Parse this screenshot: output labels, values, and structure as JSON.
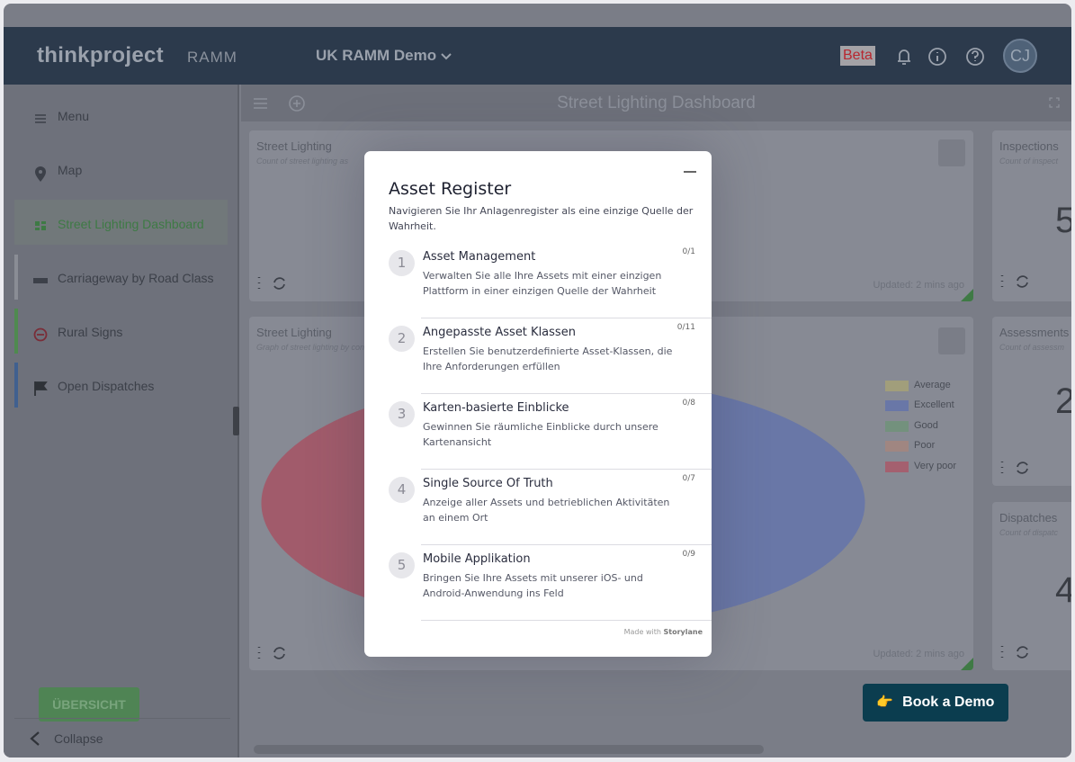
{
  "browser": {},
  "header": {
    "logo": "thinkproject",
    "product": "RAMM",
    "project": "UK RAMM Demo",
    "badge": "Beta",
    "avatar": "CJ"
  },
  "sidebar": {
    "items": [
      "Menu",
      "Map",
      "Street Lighting Dashboard",
      "Carriageway by Road Class",
      "Rural Signs",
      "Open Dispatches"
    ],
    "button": "ÜBERSICHT",
    "collapse": "Collapse"
  },
  "dashboard": {
    "title": "Street Lighting Dashboard",
    "cards": [
      {
        "title": "Street Lighting",
        "subtitle": "Count of street lighting as",
        "updated": "Updated: 2 mins ago"
      },
      {
        "title": "Inspections",
        "subtitle": "Count of inspect",
        "value": "5"
      },
      {
        "title": "Street Lighting",
        "subtitle": "Graph of street lighting by condition",
        "updated": "Updated: 2 mins ago"
      },
      {
        "title": "Assessments",
        "subtitle": "Count of assessm",
        "value": "2"
      },
      {
        "title": "Dispatches",
        "subtitle": "Count of dispatc",
        "value": "4"
      }
    ],
    "legend": [
      "Average",
      "Excellent",
      "Good",
      "Poor",
      "Very poor"
    ]
  },
  "cta": "Book a Demo",
  "modal": {
    "title": "Asset Register",
    "subtitle": "Navigieren Sie Ihr Anlagenregister als eine einzige Quelle der Wahrheit.",
    "steps": [
      {
        "number": "1",
        "title": "Asset Management",
        "description": "Verwalten Sie alle Ihre Assets mit einer einzigen Plattform in einer einzigen Quelle der Wahrheit",
        "progress": "0/1"
      },
      {
        "number": "2",
        "title": "Angepasste Asset Klassen",
        "description": "Erstellen Sie benutzerdefinierte Asset-Klassen, die Ihre Anforderungen erfüllen",
        "progress": "0/11"
      },
      {
        "number": "3",
        "title": "Karten-basierte Einblicke",
        "description": "Gewinnen Sie räumliche Einblicke durch unsere Kartenansicht",
        "progress": "0/8"
      },
      {
        "number": "4",
        "title": "Single Source Of Truth",
        "description": "Anzeige aller Assets und betrieblichen Aktivitäten an einem Ort",
        "progress": "0/7"
      },
      {
        "number": "5",
        "title": "Mobile Applikation",
        "description": "Bringen Sie Ihre Assets mit unserer iOS- und Android-Anwendung ins Feld",
        "progress": "0/9"
      }
    ],
    "footer": "Made with",
    "brand": "Storylane"
  }
}
